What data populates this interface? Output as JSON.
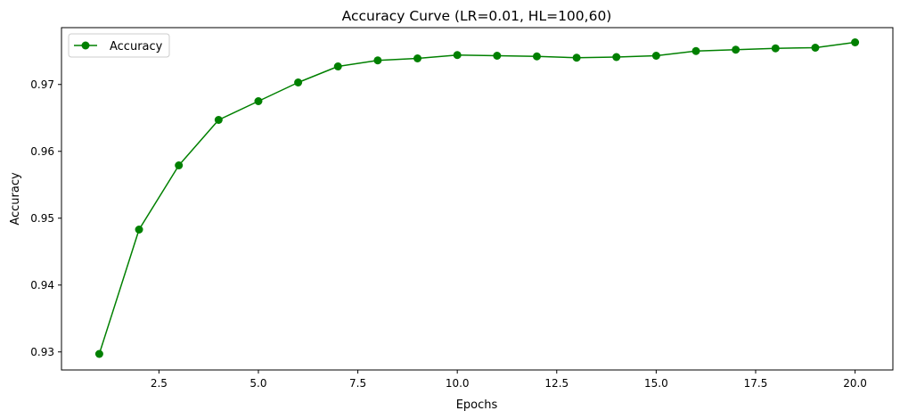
{
  "chart_data": {
    "type": "line",
    "title": "Accuracy Curve (LR=0.01, HL=100,60)",
    "xlabel": "Epochs",
    "ylabel": "Accuracy",
    "xlim": [
      0.05,
      20.95
    ],
    "ylim": [
      0.9273,
      0.9785
    ],
    "grid": false,
    "legend_position": "upper-left",
    "x_ticks": [
      2.5,
      5.0,
      7.5,
      10.0,
      12.5,
      15.0,
      17.5,
      20.0
    ],
    "x_tick_labels": [
      "2.5",
      "5.0",
      "7.5",
      "10.0",
      "12.5",
      "15.0",
      "17.5",
      "20.0"
    ],
    "y_ticks": [
      0.93,
      0.94,
      0.95,
      0.96,
      0.97
    ],
    "y_tick_labels": [
      "0.93",
      "0.94",
      "0.95",
      "0.96",
      "0.97"
    ],
    "series": [
      {
        "name": "Accuracy",
        "color": "#008000",
        "marker": "circle",
        "x": [
          1,
          2,
          3,
          4,
          5,
          6,
          7,
          8,
          9,
          10,
          11,
          12,
          13,
          14,
          15,
          16,
          17,
          18,
          19,
          20
        ],
        "values": [
          0.9297,
          0.9483,
          0.9579,
          0.9647,
          0.9675,
          0.9703,
          0.9727,
          0.9736,
          0.9739,
          0.9744,
          0.9743,
          0.9742,
          0.974,
          0.9741,
          0.9743,
          0.975,
          0.9752,
          0.9754,
          0.9755,
          0.9763
        ]
      }
    ]
  }
}
